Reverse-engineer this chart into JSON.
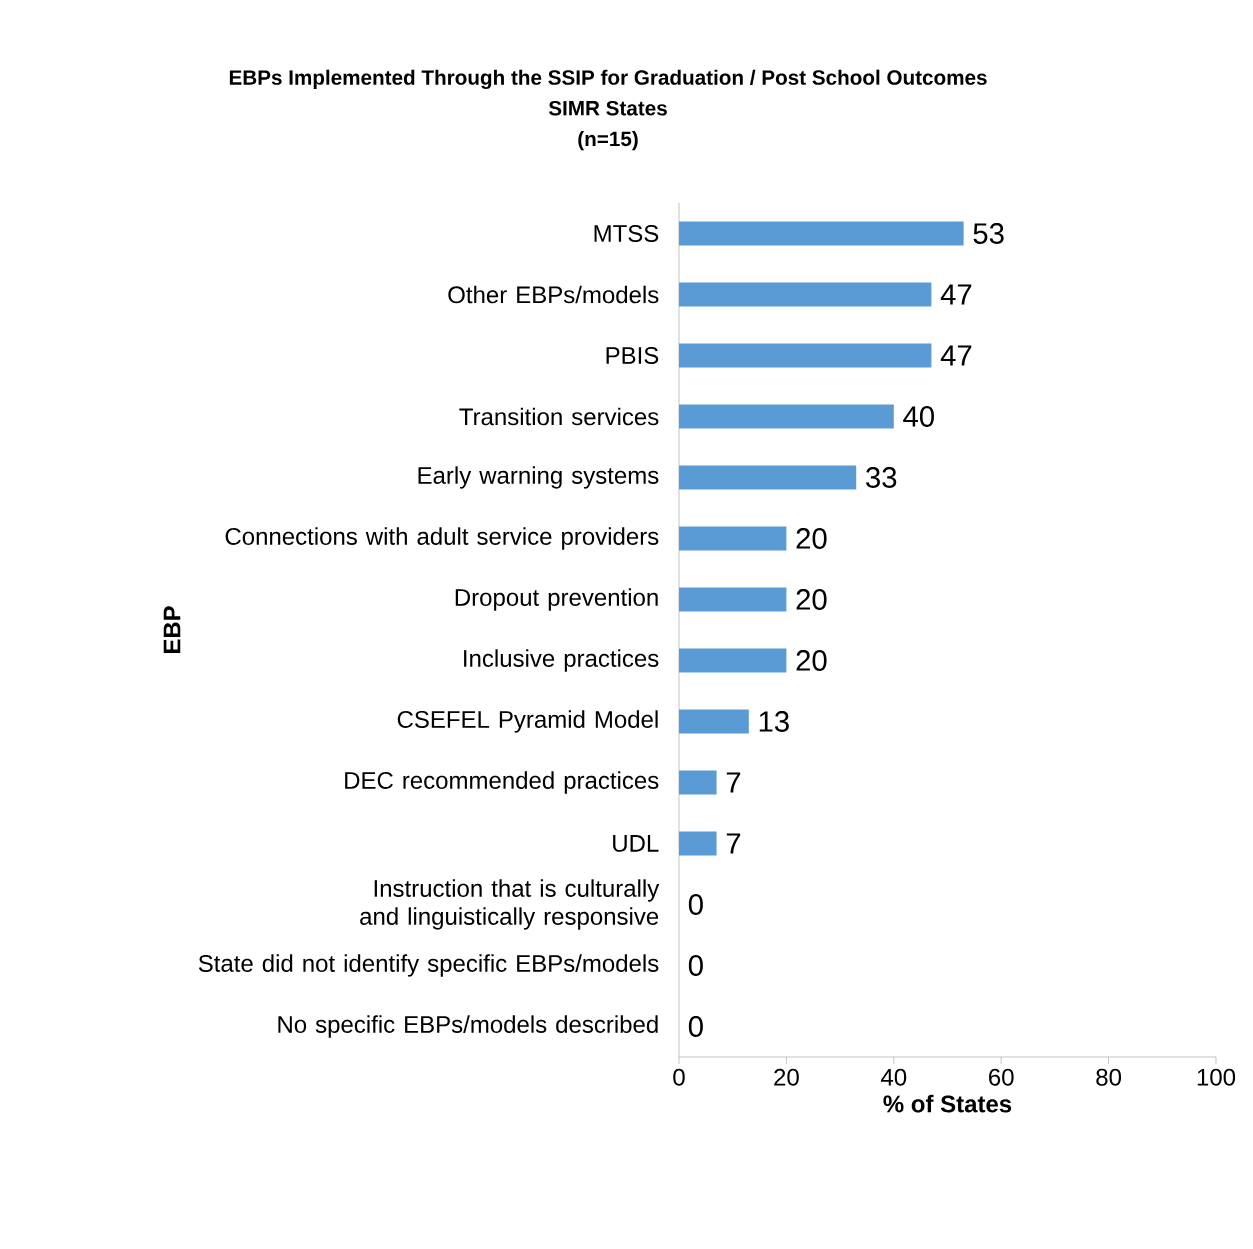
{
  "chart_data": {
    "type": "bar",
    "orientation": "horizontal",
    "title": "EBPs Implemented Through the SSIP for Graduation / Post School Outcomes",
    "subtitle": "SIMR States",
    "annotations": [
      "(n=15)"
    ],
    "xlabel": "% of States",
    "ylabel": "EBP",
    "categories": [
      "MTSS",
      "Other EBPs/models",
      "PBIS",
      "Transition services",
      "Early warning systems",
      "Connections with adult service providers",
      "Dropout prevention",
      "Inclusive practices",
      "CSEFEL Pyramid Model",
      "DEC recommended practices",
      "UDL",
      "Instruction that is culturally and linguistically responsive",
      "State did not identify specific EBPs/models",
      "No specific EBPs/models described"
    ],
    "values": [
      53,
      47,
      47,
      40,
      33,
      20,
      20,
      20,
      13,
      7,
      7,
      0,
      0,
      0
    ],
    "color": "#5b9bd5",
    "xlim": [
      0,
      100
    ],
    "xticks": [
      0,
      20,
      40,
      60,
      80,
      100
    ],
    "data_labels": true
  }
}
